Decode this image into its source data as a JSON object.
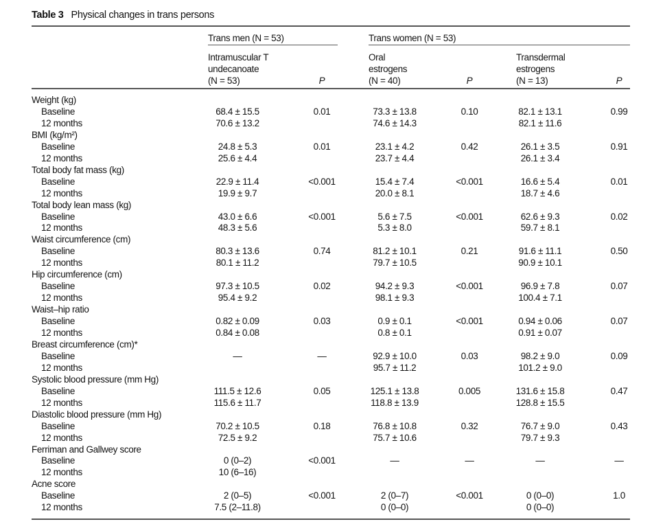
{
  "table": {
    "number": "Table 3",
    "caption": "Physical changes in trans persons",
    "groups": [
      "Trans men (N = 53)",
      "Trans women (N = 53)"
    ],
    "subheaders": [
      [
        "Intramuscular T",
        "undecanoate",
        "(N = 53)"
      ],
      [
        "Oral",
        "estrogens",
        "(N = 40)"
      ],
      [
        "Transdermal",
        "estrogens",
        "(N = 13)"
      ]
    ],
    "p_label": "P",
    "sections": [
      {
        "label": "Weight (kg)",
        "rows": [
          {
            "label": "Baseline",
            "v": [
              "68.4 ± 15.5",
              "0.01",
              "73.3 ± 13.8",
              "0.10",
              "82.1 ± 13.1",
              "0.99"
            ]
          },
          {
            "label": "12 months",
            "v": [
              "70.6 ± 13.2",
              "",
              "74.6 ± 14.3",
              "",
              "82.1 ± 11.6",
              ""
            ]
          }
        ]
      },
      {
        "label": "BMI (kg/m²)",
        "rows": [
          {
            "label": "Baseline",
            "v": [
              "24.8 ± 5.3",
              "0.01",
              "23.1 ± 4.2",
              "0.42",
              "26.1 ± 3.5",
              "0.91"
            ]
          },
          {
            "label": "12 months",
            "v": [
              "25.6 ± 4.4",
              "",
              "23.7 ± 4.4",
              "",
              "26.1 ± 3.4",
              ""
            ]
          }
        ]
      },
      {
        "label": "Total body fat mass (kg)",
        "rows": [
          {
            "label": "Baseline",
            "v": [
              "22.9 ± 11.4",
              "<0.001",
              "15.4 ± 7.4",
              "<0.001",
              "16.6 ± 5.4",
              "0.01"
            ]
          },
          {
            "label": "12 months",
            "v": [
              "19.9 ± 9.7",
              "",
              "20.0 ± 8.1",
              "",
              "18.7 ± 4.6",
              ""
            ]
          }
        ]
      },
      {
        "label": "Total body lean mass (kg)",
        "rows": [
          {
            "label": "Baseline",
            "v": [
              "43.0 ± 6.6",
              "<0.001",
              "5.6 ± 7.5",
              "<0.001",
              "62.6 ± 9.3",
              "0.02"
            ]
          },
          {
            "label": "12 months",
            "v": [
              "48.3 ± 5.6",
              "",
              "5.3 ± 8.0",
              "",
              "59.7 ± 8.1",
              ""
            ]
          }
        ]
      },
      {
        "label": "Waist circumference (cm)",
        "rows": [
          {
            "label": "Baseline",
            "v": [
              "80.3 ± 13.6",
              "0.74",
              "81.2 ± 10.1",
              "0.21",
              "91.6 ± 11.1",
              "0.50"
            ]
          },
          {
            "label": "12 months",
            "v": [
              "80.1 ± 11.2",
              "",
              "79.7 ± 10.5",
              "",
              "90.9 ± 10.1",
              ""
            ]
          }
        ]
      },
      {
        "label": "Hip circumference (cm)",
        "rows": [
          {
            "label": "Baseline",
            "v": [
              "97.3 ± 10.5",
              "0.02",
              "94.2 ± 9.3",
              "<0.001",
              "96.9 ± 7.8",
              "0.07"
            ]
          },
          {
            "label": "12 months",
            "v": [
              "95.4 ± 9.2",
              "",
              "98.1 ± 9.3",
              "",
              "100.4 ± 7.1",
              ""
            ]
          }
        ]
      },
      {
        "label": "Waist–hip ratio",
        "rows": [
          {
            "label": "Baseline",
            "v": [
              "0.82 ± 0.09",
              "0.03",
              "0.9 ± 0.1",
              "<0.001",
              "0.94 ± 0.06",
              "0.07"
            ]
          },
          {
            "label": "12 months",
            "v": [
              "0.84 ± 0.08",
              "",
              "0.8 ± 0.1",
              "",
              "0.91 ± 0.07",
              ""
            ]
          }
        ]
      },
      {
        "label": "Breast circumference (cm)*",
        "rows": [
          {
            "label": "Baseline",
            "v": [
              "—",
              "—",
              "92.9 ± 10.0",
              "0.03",
              "98.2 ± 9.0",
              "0.09"
            ]
          },
          {
            "label": "12 months",
            "v": [
              "",
              "",
              "95.7 ± 11.2",
              "",
              "101.2 ± 9.0",
              ""
            ]
          }
        ]
      },
      {
        "label": "Systolic blood pressure (mm Hg)",
        "rows": [
          {
            "label": "Baseline",
            "v": [
              "111.5 ± 12.6",
              "0.05",
              "125.1 ± 13.8",
              "0.005",
              "131.6 ± 15.8",
              "0.47"
            ]
          },
          {
            "label": "12 months",
            "v": [
              "115.6 ± 11.7",
              "",
              "118.8 ± 13.9",
              "",
              "128.8 ± 15.5",
              ""
            ]
          }
        ]
      },
      {
        "label": "Diastolic blood pressure (mm Hg)",
        "rows": [
          {
            "label": "Baseline",
            "v": [
              "70.2 ± 10.5",
              "0.18",
              "76.8 ± 10.8",
              "0.32",
              "76.7 ± 9.0",
              "0.43"
            ]
          },
          {
            "label": "12 months",
            "v": [
              "72.5 ± 9.2",
              "",
              "75.7 ± 10.6",
              "",
              "79.7 ± 9.3",
              ""
            ]
          }
        ]
      },
      {
        "label": "Ferriman and Gallwey score",
        "rows": [
          {
            "label": "Baseline",
            "v": [
              "0 (0–2)",
              "<0.001",
              "—",
              "—",
              "—",
              "—"
            ]
          },
          {
            "label": "12 months",
            "v": [
              "10 (6–16)",
              "",
              "",
              "",
              "",
              ""
            ]
          }
        ]
      },
      {
        "label": "Acne score",
        "rows": [
          {
            "label": "Baseline",
            "v": [
              "2 (0–5)",
              "<0.001",
              "2 (0–7)",
              "<0.001",
              "0 (0–0)",
              "1.0"
            ]
          },
          {
            "label": "12 months",
            "v": [
              "7.5 (2–11.8)",
              "",
              "0 (0–0)",
              "",
              "0 (0–0)",
              ""
            ]
          }
        ]
      }
    ]
  }
}
